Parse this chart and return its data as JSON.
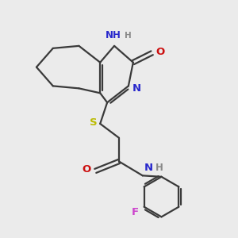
{
  "bg_color": "#ebebeb",
  "bond_color": "#3a3a3a",
  "N_color": "#2828cc",
  "O_color": "#cc1010",
  "S_color": "#bbbb00",
  "F_color": "#cc44cc",
  "H_color": "#888888",
  "line_width": 1.6,
  "font_size": 8.5,
  "xlim": [
    0,
    10
  ],
  "ylim": [
    0,
    10
  ]
}
